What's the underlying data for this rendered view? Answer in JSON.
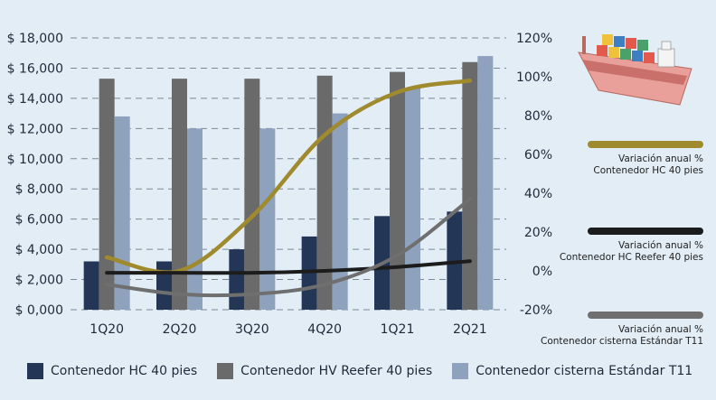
{
  "chart_data": {
    "type": "bar",
    "categories": [
      "1Q20",
      "2Q20",
      "3Q20",
      "4Q20",
      "1Q21",
      "2Q21"
    ],
    "series": [
      {
        "name": "Contenedor HC 40 pies",
        "color": "#243656",
        "values": [
          3200,
          3200,
          4000,
          4850,
          6200,
          6500
        ]
      },
      {
        "name": "Contenedor HV Reefer 40 pies",
        "color": "#6a6a6a",
        "values": [
          15300,
          15300,
          15300,
          15500,
          15750,
          16400
        ]
      },
      {
        "name": "Contenedor cisterna Estándar T11",
        "color": "#8ea1bd",
        "values": [
          12800,
          12000,
          12000,
          13000,
          14700,
          16800
        ]
      }
    ],
    "lines": [
      {
        "name": "Variación anual % Contenedor HC 40 pies",
        "color": "#a08a2e",
        "axis": "right",
        "values": [
          7,
          0,
          28,
          70,
          92,
          98
        ]
      },
      {
        "name": "Variación anual % Contenedor HC Reefer 40 pies",
        "color": "#1c1c1c",
        "axis": "right",
        "values": [
          -1,
          -1,
          -1,
          0,
          2,
          5
        ]
      },
      {
        "name": "Variación anual % Contenedor cisterna Estándar T11",
        "color": "#6f6f6f",
        "axis": "right",
        "values": [
          -7,
          -12,
          -12,
          -7,
          8,
          37
        ]
      }
    ],
    "y_left": {
      "min": 0,
      "max": 18000,
      "ticks": [
        "$ 0,000",
        "$ 2,000",
        "$ 4,000",
        "$ 6,000",
        "$ 8,000",
        "$ 10,000",
        "$ 12,000",
        "$ 14,000",
        "$ 16,000",
        "$ 18,000"
      ]
    },
    "y_right": {
      "min": -20,
      "max": 120,
      "ticks": [
        "-20%",
        "0%",
        "20%",
        "40%",
        "60%",
        "80%",
        "100%",
        "120%"
      ]
    },
    "grid": true,
    "legend_position": "bottom"
  },
  "notes": [
    {
      "line1": "Variación anual  %",
      "line2": "Contenedor HC 40 pies",
      "color": "#a08a2e"
    },
    {
      "line1": "Variación anual  %",
      "line2": "Contenedor HC Reefer 40 pies",
      "color": "#1c1c1c"
    },
    {
      "line1": "Variación anual  %",
      "line2": "Contenedor cisterna Estándar T11",
      "color": "#6f6f6f"
    }
  ],
  "legend": [
    {
      "label": "Contenedor HC 40 pies",
      "color": "#243656"
    },
    {
      "label": "Contenedor HV Reefer 40 pies",
      "color": "#6a6a6a"
    },
    {
      "label": "Contenedor cisterna Estándar T11",
      "color": "#8ea1bd"
    }
  ],
  "ship_icon": "cargo-ship-icon"
}
